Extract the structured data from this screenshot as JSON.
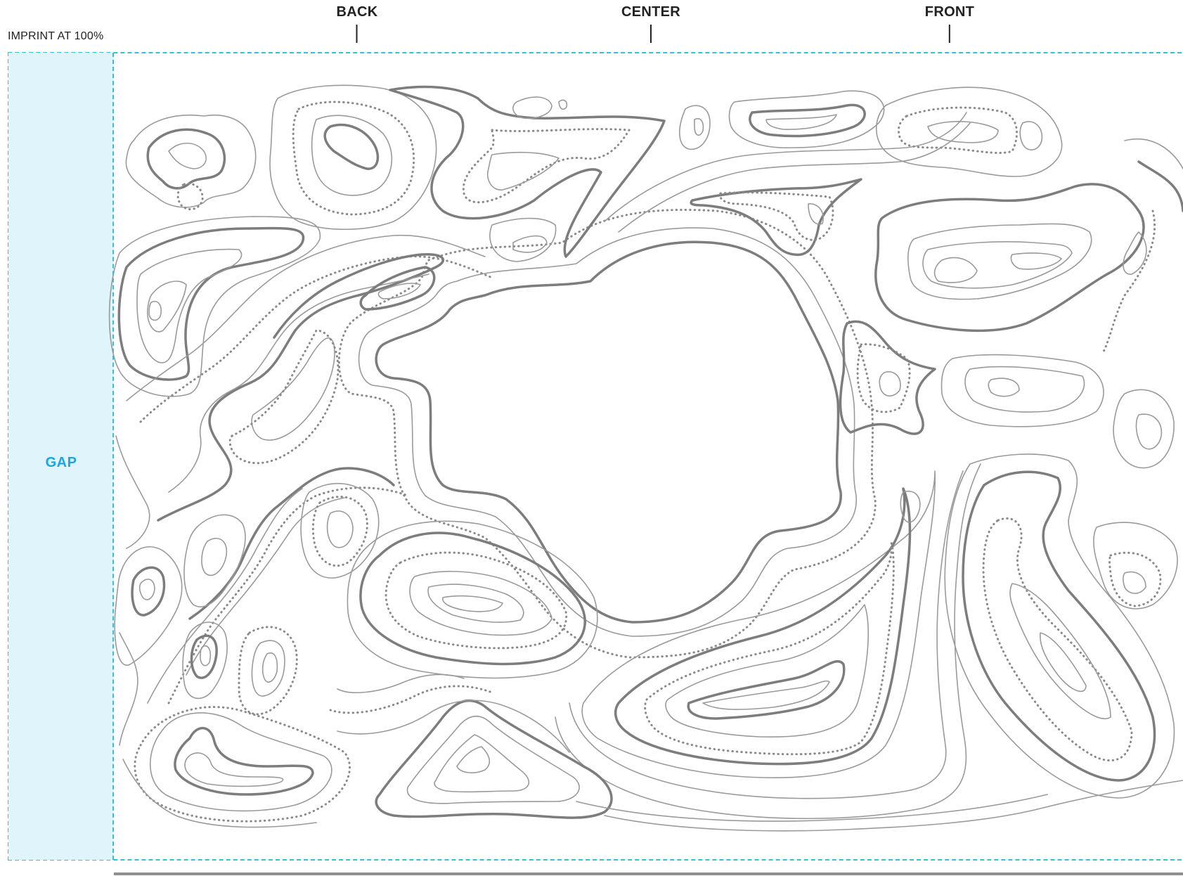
{
  "imprint": {
    "label": "IMPRINT AT 100%"
  },
  "markers": {
    "back": "BACK",
    "center": "CENTER",
    "front": "FRONT"
  },
  "gap": {
    "label": "GAP"
  },
  "colors": {
    "guide_dash": "#35c2d6",
    "gap_fill": "#e0f5fb",
    "gap_text": "#1aa7dd",
    "contour_thin": "#9a9a9a",
    "contour_thick": "#7d7d7d",
    "contour_dotted": "#8a8a8a",
    "rule": "#8f8f8f"
  },
  "artwork": {
    "icon": "topographic-contour-map"
  }
}
